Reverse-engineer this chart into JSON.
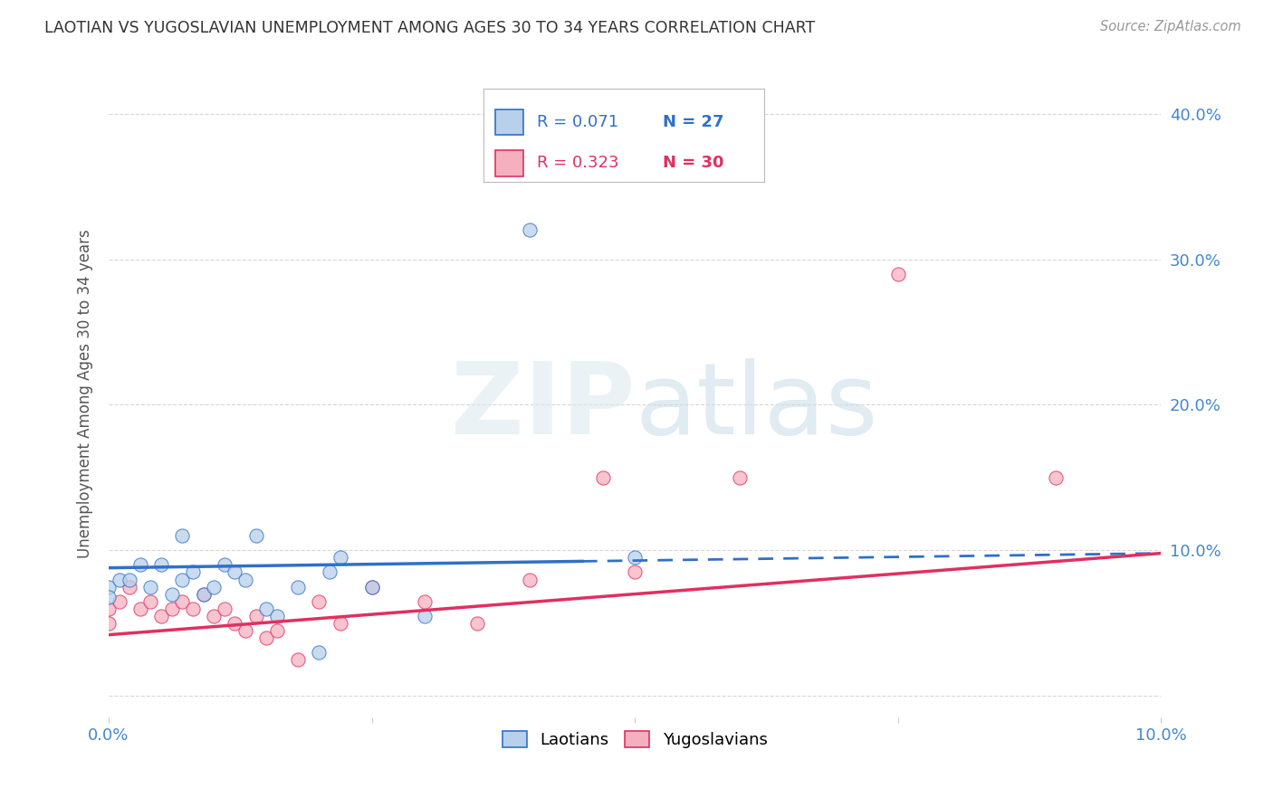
{
  "title": "LAOTIAN VS YUGOSLAVIAN UNEMPLOYMENT AMONG AGES 30 TO 34 YEARS CORRELATION CHART",
  "source": "Source: ZipAtlas.com",
  "ylabel": "Unemployment Among Ages 30 to 34 years",
  "xmin": 0.0,
  "xmax": 0.1,
  "ymin": -0.015,
  "ymax": 0.43,
  "yticks": [
    0.0,
    0.1,
    0.2,
    0.3,
    0.4
  ],
  "ytick_labels": [
    "",
    "10.0%",
    "20.0%",
    "30.0%",
    "40.0%"
  ],
  "xticks": [
    0.0,
    0.025,
    0.05,
    0.075,
    0.1
  ],
  "xtick_labels": [
    "0.0%",
    "",
    "",
    "",
    "10.0%"
  ],
  "laotian_color": "#b8d0ea",
  "yugoslavian_color": "#f5b0c0",
  "laotian_line_color": "#3070c8",
  "yugoslavian_line_color": "#e03060",
  "R_laotian": 0.071,
  "N_laotian": 27,
  "R_yugoslavian": 0.323,
  "N_yugoslavian": 30,
  "laotian_x": [
    0.0,
    0.0,
    0.001,
    0.002,
    0.003,
    0.004,
    0.005,
    0.006,
    0.007,
    0.007,
    0.008,
    0.009,
    0.01,
    0.011,
    0.012,
    0.013,
    0.014,
    0.015,
    0.016,
    0.018,
    0.02,
    0.021,
    0.022,
    0.025,
    0.03,
    0.04,
    0.05
  ],
  "laotian_y": [
    0.075,
    0.068,
    0.08,
    0.08,
    0.09,
    0.075,
    0.09,
    0.07,
    0.08,
    0.11,
    0.085,
    0.07,
    0.075,
    0.09,
    0.085,
    0.08,
    0.11,
    0.06,
    0.055,
    0.075,
    0.03,
    0.085,
    0.095,
    0.075,
    0.055,
    0.32,
    0.095
  ],
  "yugoslavian_x": [
    0.0,
    0.0,
    0.001,
    0.002,
    0.003,
    0.004,
    0.005,
    0.006,
    0.007,
    0.008,
    0.009,
    0.01,
    0.011,
    0.012,
    0.013,
    0.014,
    0.015,
    0.016,
    0.018,
    0.02,
    0.022,
    0.025,
    0.03,
    0.035,
    0.04,
    0.047,
    0.05,
    0.06,
    0.075,
    0.09
  ],
  "yugoslavian_y": [
    0.06,
    0.05,
    0.065,
    0.075,
    0.06,
    0.065,
    0.055,
    0.06,
    0.065,
    0.06,
    0.07,
    0.055,
    0.06,
    0.05,
    0.045,
    0.055,
    0.04,
    0.045,
    0.025,
    0.065,
    0.05,
    0.075,
    0.065,
    0.05,
    0.08,
    0.15,
    0.085,
    0.15,
    0.29,
    0.15
  ],
  "lao_line_x": [
    0.0,
    0.1
  ],
  "lao_line_y": [
    0.088,
    0.098
  ],
  "yug_line_x": [
    0.0,
    0.1
  ],
  "yug_line_y": [
    0.042,
    0.098
  ],
  "watermark_zip": "ZIP",
  "watermark_atlas": "atlas",
  "background_color": "#ffffff",
  "grid_color": "#d8d8d8",
  "title_color": "#333333",
  "source_color": "#999999",
  "tick_color": "#4488cc",
  "ylabel_color": "#555555"
}
